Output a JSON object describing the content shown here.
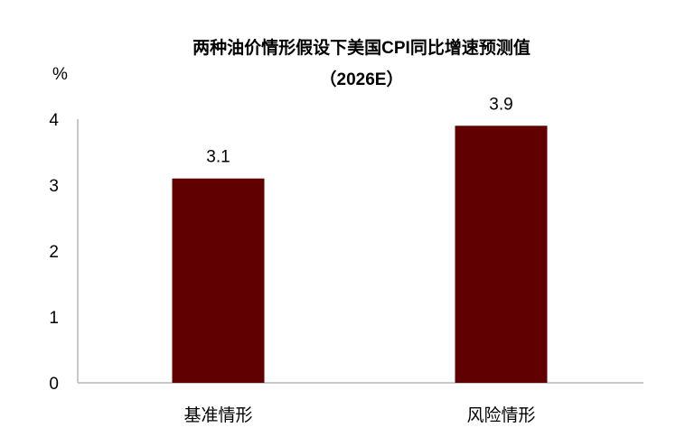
{
  "chart_data": {
    "type": "bar",
    "title": "两种油价情形假设下美国CPI同比增速预测值",
    "subtitle": "（2026E）",
    "ylabel": "%",
    "xlabel": "",
    "categories": [
      "基准情形",
      "风险情形"
    ],
    "values": [
      3.1,
      3.9
    ],
    "data_labels": [
      "3.1",
      "3.9"
    ],
    "ylim": [
      0,
      4
    ],
    "yticks": [
      "0",
      "1",
      "2",
      "3",
      "4"
    ],
    "grid": false,
    "bar_color": "#600000",
    "axis_color": "#c8c8c8"
  }
}
